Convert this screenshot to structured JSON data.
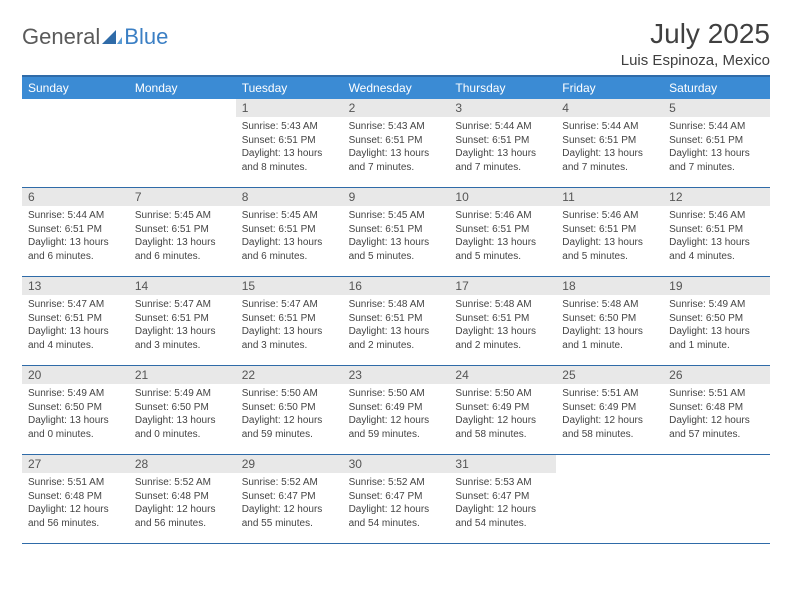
{
  "logo": {
    "text1": "General",
    "text2": "Blue"
  },
  "title": "July 2025",
  "location": "Luis Espinoza, Mexico",
  "colors": {
    "header_bg": "#3b8bd4",
    "border": "#2f6ba8",
    "daynum_bg": "#e8e8e8",
    "text": "#404040"
  },
  "dayNames": [
    "Sunday",
    "Monday",
    "Tuesday",
    "Wednesday",
    "Thursday",
    "Friday",
    "Saturday"
  ],
  "weeks": [
    [
      {
        "n": "",
        "sr": "",
        "ss": "",
        "dl": ""
      },
      {
        "n": "",
        "sr": "",
        "ss": "",
        "dl": ""
      },
      {
        "n": "1",
        "sr": "5:43 AM",
        "ss": "6:51 PM",
        "dl": "13 hours and 8 minutes."
      },
      {
        "n": "2",
        "sr": "5:43 AM",
        "ss": "6:51 PM",
        "dl": "13 hours and 7 minutes."
      },
      {
        "n": "3",
        "sr": "5:44 AM",
        "ss": "6:51 PM",
        "dl": "13 hours and 7 minutes."
      },
      {
        "n": "4",
        "sr": "5:44 AM",
        "ss": "6:51 PM",
        "dl": "13 hours and 7 minutes."
      },
      {
        "n": "5",
        "sr": "5:44 AM",
        "ss": "6:51 PM",
        "dl": "13 hours and 7 minutes."
      }
    ],
    [
      {
        "n": "6",
        "sr": "5:44 AM",
        "ss": "6:51 PM",
        "dl": "13 hours and 6 minutes."
      },
      {
        "n": "7",
        "sr": "5:45 AM",
        "ss": "6:51 PM",
        "dl": "13 hours and 6 minutes."
      },
      {
        "n": "8",
        "sr": "5:45 AM",
        "ss": "6:51 PM",
        "dl": "13 hours and 6 minutes."
      },
      {
        "n": "9",
        "sr": "5:45 AM",
        "ss": "6:51 PM",
        "dl": "13 hours and 5 minutes."
      },
      {
        "n": "10",
        "sr": "5:46 AM",
        "ss": "6:51 PM",
        "dl": "13 hours and 5 minutes."
      },
      {
        "n": "11",
        "sr": "5:46 AM",
        "ss": "6:51 PM",
        "dl": "13 hours and 5 minutes."
      },
      {
        "n": "12",
        "sr": "5:46 AM",
        "ss": "6:51 PM",
        "dl": "13 hours and 4 minutes."
      }
    ],
    [
      {
        "n": "13",
        "sr": "5:47 AM",
        "ss": "6:51 PM",
        "dl": "13 hours and 4 minutes."
      },
      {
        "n": "14",
        "sr": "5:47 AM",
        "ss": "6:51 PM",
        "dl": "13 hours and 3 minutes."
      },
      {
        "n": "15",
        "sr": "5:47 AM",
        "ss": "6:51 PM",
        "dl": "13 hours and 3 minutes."
      },
      {
        "n": "16",
        "sr": "5:48 AM",
        "ss": "6:51 PM",
        "dl": "13 hours and 2 minutes."
      },
      {
        "n": "17",
        "sr": "5:48 AM",
        "ss": "6:51 PM",
        "dl": "13 hours and 2 minutes."
      },
      {
        "n": "18",
        "sr": "5:48 AM",
        "ss": "6:50 PM",
        "dl": "13 hours and 1 minute."
      },
      {
        "n": "19",
        "sr": "5:49 AM",
        "ss": "6:50 PM",
        "dl": "13 hours and 1 minute."
      }
    ],
    [
      {
        "n": "20",
        "sr": "5:49 AM",
        "ss": "6:50 PM",
        "dl": "13 hours and 0 minutes."
      },
      {
        "n": "21",
        "sr": "5:49 AM",
        "ss": "6:50 PM",
        "dl": "13 hours and 0 minutes."
      },
      {
        "n": "22",
        "sr": "5:50 AM",
        "ss": "6:50 PM",
        "dl": "12 hours and 59 minutes."
      },
      {
        "n": "23",
        "sr": "5:50 AM",
        "ss": "6:49 PM",
        "dl": "12 hours and 59 minutes."
      },
      {
        "n": "24",
        "sr": "5:50 AM",
        "ss": "6:49 PM",
        "dl": "12 hours and 58 minutes."
      },
      {
        "n": "25",
        "sr": "5:51 AM",
        "ss": "6:49 PM",
        "dl": "12 hours and 58 minutes."
      },
      {
        "n": "26",
        "sr": "5:51 AM",
        "ss": "6:48 PM",
        "dl": "12 hours and 57 minutes."
      }
    ],
    [
      {
        "n": "27",
        "sr": "5:51 AM",
        "ss": "6:48 PM",
        "dl": "12 hours and 56 minutes."
      },
      {
        "n": "28",
        "sr": "5:52 AM",
        "ss": "6:48 PM",
        "dl": "12 hours and 56 minutes."
      },
      {
        "n": "29",
        "sr": "5:52 AM",
        "ss": "6:47 PM",
        "dl": "12 hours and 55 minutes."
      },
      {
        "n": "30",
        "sr": "5:52 AM",
        "ss": "6:47 PM",
        "dl": "12 hours and 54 minutes."
      },
      {
        "n": "31",
        "sr": "5:53 AM",
        "ss": "6:47 PM",
        "dl": "12 hours and 54 minutes."
      },
      {
        "n": "",
        "sr": "",
        "ss": "",
        "dl": ""
      },
      {
        "n": "",
        "sr": "",
        "ss": "",
        "dl": ""
      }
    ]
  ],
  "labels": {
    "sunrise": "Sunrise:",
    "sunset": "Sunset:",
    "daylight": "Daylight:"
  }
}
